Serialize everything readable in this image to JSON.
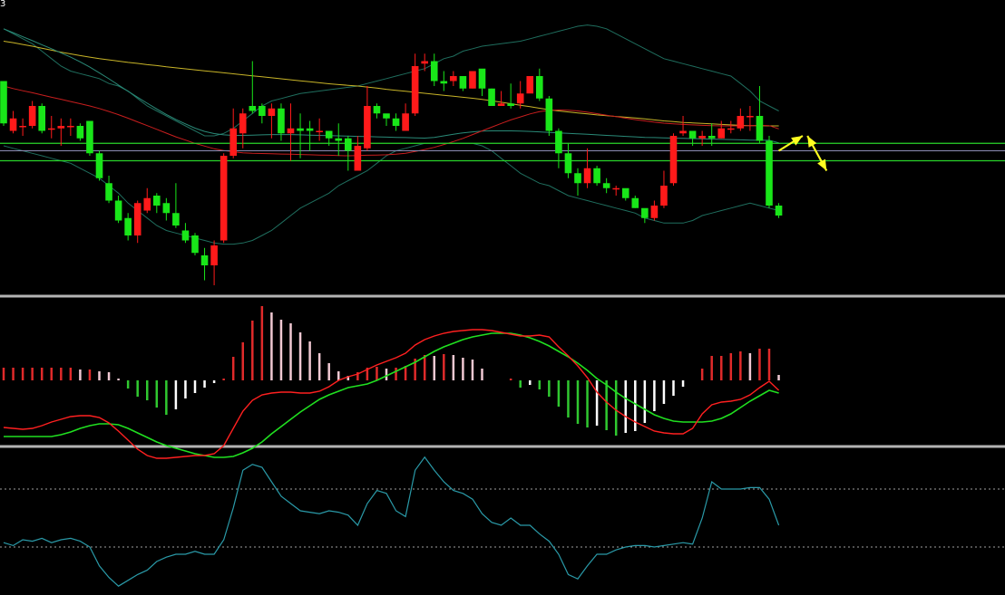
{
  "corner_label": "3",
  "colors": {
    "background": "#000000",
    "up_candle": "#ff1a1a",
    "down_candle": "#19e619",
    "ma_long": "#c8b428",
    "ma_mid": "#c81e1e",
    "ma_teal": "#2a8a78",
    "bollinger": "#1f6e5e",
    "level_line": "#29d42a",
    "price_line": "#8c8cb4",
    "separator": "#b4b4b4",
    "macd_dif": "#ff2020",
    "macd_dea": "#20e020",
    "hist_pos_rising": "#e02a2a",
    "hist_pos_falling": "#f0c8d2",
    "hist_neg_falling": "#30c830",
    "hist_neg_rising": "#ffffff",
    "oscillator": "#2a9aa8",
    "osc_ref": "#a0a0a0",
    "arrow": "#ffff20"
  },
  "chart_data": [
    {
      "type": "candlestick",
      "name": "price",
      "ylim": [
        0,
        100
      ],
      "candles": [
        [
          82,
          65,
          82,
          64
        ],
        [
          62,
          67,
          70,
          61
        ],
        [
          64,
          64,
          67,
          60
        ],
        [
          64,
          72,
          74,
          63
        ],
        [
          72,
          62,
          73,
          61
        ],
        [
          63,
          63,
          68,
          59
        ],
        [
          63,
          64,
          67,
          56
        ],
        [
          64,
          64,
          67,
          60
        ],
        [
          64,
          59,
          65,
          58
        ],
        [
          66,
          53,
          66,
          52
        ],
        [
          53,
          43,
          54,
          42
        ],
        [
          41,
          34,
          44,
          33
        ],
        [
          34,
          26,
          36,
          25
        ],
        [
          27,
          20,
          29,
          18
        ],
        [
          20,
          33,
          34,
          17
        ],
        [
          30,
          35,
          39,
          29
        ],
        [
          36,
          32,
          37,
          29
        ],
        [
          33,
          29,
          35,
          26
        ],
        [
          29,
          24,
          41,
          23
        ],
        [
          22,
          18,
          25,
          17
        ],
        [
          20,
          13,
          21,
          12
        ],
        [
          12,
          8,
          15,
          2
        ],
        [
          8,
          16,
          18,
          0
        ],
        [
          18,
          52,
          53,
          17
        ],
        [
          52,
          63,
          71,
          51
        ],
        [
          61,
          69,
          71,
          55
        ],
        [
          72,
          70,
          90,
          69
        ],
        [
          72,
          68,
          73,
          65
        ],
        [
          68,
          71,
          73,
          59
        ],
        [
          71,
          61,
          73,
          58
        ],
        [
          61,
          63,
          73,
          50
        ],
        [
          63,
          62,
          69,
          51
        ],
        [
          63,
          62,
          66,
          54
        ],
        [
          62,
          62,
          67,
          58
        ],
        [
          62,
          59,
          61,
          56
        ],
        [
          59,
          58,
          65,
          52
        ],
        [
          59,
          54,
          60,
          46
        ],
        [
          46,
          56,
          60,
          46
        ],
        [
          55,
          72,
          80,
          54
        ],
        [
          72,
          69,
          73,
          67
        ],
        [
          69,
          67,
          68,
          64
        ],
        [
          67,
          64,
          69,
          62
        ],
        [
          62,
          69,
          73,
          62
        ],
        [
          69,
          88,
          93,
          68
        ],
        [
          89,
          90,
          93,
          86
        ],
        [
          90,
          82,
          93,
          80
        ],
        [
          82,
          81,
          86,
          78
        ],
        [
          82,
          84,
          86,
          80
        ],
        [
          84,
          79,
          84,
          78
        ],
        [
          79,
          86,
          86,
          79
        ],
        [
          87,
          79,
          85,
          76
        ],
        [
          79,
          72,
          79,
          72
        ],
        [
          72,
          73,
          78,
          72
        ],
        [
          73,
          72,
          81,
          71
        ],
        [
          73,
          77,
          82,
          71
        ],
        [
          77,
          84,
          84,
          79
        ],
        [
          84,
          75,
          87,
          74
        ],
        [
          75,
          62,
          76,
          60
        ],
        [
          62,
          53,
          63,
          47
        ],
        [
          53,
          45,
          57,
          43
        ],
        [
          45,
          41,
          47,
          36
        ],
        [
          41,
          47,
          55,
          39
        ],
        [
          47,
          41,
          48,
          40
        ],
        [
          41,
          39,
          43,
          37
        ],
        [
          39,
          39,
          40,
          36
        ],
        [
          39,
          35,
          38,
          34
        ],
        [
          35,
          31,
          36,
          31
        ],
        [
          31,
          27,
          30,
          25
        ],
        [
          27,
          32,
          34,
          26
        ],
        [
          32,
          40,
          46,
          31
        ],
        [
          41,
          60,
          61,
          40
        ],
        [
          61,
          62,
          68,
          60
        ],
        [
          62,
          59,
          62,
          56
        ],
        [
          59,
          60,
          62,
          56
        ],
        [
          60,
          59,
          65,
          56
        ],
        [
          59,
          63,
          66,
          59
        ],
        [
          63,
          63,
          66,
          61
        ],
        [
          63,
          68,
          71,
          62
        ],
        [
          68,
          68,
          72,
          62
        ],
        [
          68,
          58,
          80,
          57
        ],
        [
          58,
          32,
          60,
          31
        ],
        [
          32,
          28,
          33,
          27
        ]
      ],
      "ma_long": [
        98,
        97.4,
        96.7,
        96,
        95.2,
        94.4,
        93.6,
        92.9,
        92.2,
        91.6,
        91,
        90.5,
        90,
        89.5,
        89.1,
        88.6,
        88.2,
        87.7,
        87.3,
        86.9,
        86.5,
        86.1,
        85.7,
        85.3,
        84.9,
        84.5,
        84.1,
        83.7,
        83.3,
        82.9,
        82.5,
        82.1,
        81.7,
        81.3,
        80.9,
        80.6,
        80.3,
        80,
        79.6,
        79.2,
        78.7,
        78.3,
        77.9,
        77.5,
        77.1,
        76.7,
        76.3,
        75.9,
        75.5,
        75.1,
        74.6,
        74.1,
        73.5,
        72.9,
        72.3,
        71.7,
        71.1,
        70.5,
        70,
        69.6,
        69.2,
        68.8,
        68.4,
        68.1,
        67.8,
        67.5,
        67.2,
        66.8,
        66.4,
        66,
        65.7,
        65.4,
        65.2,
        65,
        64.8,
        64.6,
        64.4,
        64.2,
        64.1,
        64.1,
        64,
        64
      ],
      "ma_mid": [
        80,
        79,
        78.1,
        77.3,
        76.4,
        75.5,
        74.7,
        73.8,
        72.9,
        72,
        71,
        69.8,
        68.5,
        67.1,
        65.6,
        64.1,
        62.6,
        61.1,
        59.6,
        58.3,
        57,
        55.9,
        54.8,
        54.1,
        53.6,
        53.2,
        53,
        52.9,
        52.8,
        52.7,
        52.6,
        52.5,
        52.4,
        52.3,
        52.2,
        52.1,
        52,
        52.1,
        52.2,
        52.3,
        52.4,
        52.6,
        53,
        53.7,
        54.5,
        55.4,
        56.5,
        57.7,
        59,
        60.5,
        62,
        63.5,
        65,
        66.4,
        67.6,
        68.8,
        69.7,
        70.2,
        70.4,
        70.3,
        70,
        69.5,
        68.9,
        68.3,
        67.7,
        67.1,
        66.5,
        66,
        65.5,
        65.1,
        64.8,
        64.6,
        64.4,
        64.2,
        64.1,
        64,
        64,
        64,
        64.1,
        64.2,
        64.1,
        62.8
      ],
      "ma_teal": [
        103,
        101.4,
        99.8,
        98.2,
        96.6,
        95,
        93.3,
        91.6,
        89.7,
        87.6,
        85.3,
        82.9,
        80.4,
        77.9,
        75.5,
        73.1,
        70.8,
        68.6,
        66.6,
        64.8,
        63.1,
        61.8,
        60.9,
        60.4,
        60.2,
        60.2,
        60.3,
        60.4,
        60.5,
        60.5,
        60.5,
        60.4,
        60.3,
        60.2,
        60.1,
        60,
        59.9,
        59.8,
        59.7,
        59.6,
        59.5,
        59.4,
        59.3,
        59.2,
        59.1,
        59.4,
        60,
        60.6,
        61.2,
        61.6,
        61.9,
        62,
        62,
        62,
        61.9,
        61.8,
        61.6,
        61.4,
        61.2,
        61,
        60.8,
        60.6,
        60.4,
        60.2,
        60,
        59.8,
        59.6,
        59.4,
        59.3,
        59.2,
        59.1,
        59,
        58.9,
        58.8,
        58.7,
        58.6,
        58.5,
        58.4,
        58.3,
        58.2,
        58.2,
        57.2
      ],
      "boll_upper": [
        103,
        101,
        99,
        97,
        94,
        91,
        88,
        86,
        85,
        84,
        83,
        81,
        80,
        78,
        75,
        72,
        70,
        68,
        66,
        64,
        62,
        60,
        60,
        61,
        63,
        66,
        69,
        72,
        74,
        75,
        76,
        77,
        77.5,
        78,
        78.5,
        79,
        79.5,
        80,
        81,
        82,
        83,
        84,
        85,
        86,
        87,
        89,
        91,
        92,
        94,
        95,
        96,
        96.5,
        97,
        97.5,
        98,
        99,
        100,
        101,
        102,
        103,
        104,
        104.5,
        104,
        103,
        101,
        99,
        97,
        95,
        93,
        91,
        90,
        89,
        88,
        87,
        86,
        85,
        84,
        81,
        78,
        74,
        72,
        70
      ],
      "boll_lower": [
        56,
        55,
        54,
        53,
        52,
        51,
        50,
        49,
        47,
        45,
        43,
        40,
        37,
        33,
        30,
        27,
        24,
        22,
        21,
        20,
        19,
        18,
        17,
        16.5,
        16.5,
        17,
        18,
        20,
        22,
        25,
        28,
        31,
        33,
        35,
        37,
        40,
        42,
        44,
        46,
        49,
        52,
        54,
        55,
        56,
        57,
        57,
        57,
        57,
        57,
        57,
        56,
        54,
        51,
        48,
        45,
        43,
        41,
        40,
        38,
        36,
        35,
        34,
        33,
        32,
        31,
        30,
        29,
        27,
        26,
        25,
        25,
        25,
        26,
        28,
        29,
        30,
        31,
        32,
        33,
        32,
        31,
        30
      ],
      "levels": [
        {
          "value": 57
        },
        {
          "value": 50
        }
      ],
      "price_line": 54,
      "arrows": [
        {
          "from": [
            81,
            54
          ],
          "to": [
            83.5,
            60
          ],
          "double_head": false
        },
        {
          "from": [
            84,
            60
          ],
          "to": [
            86,
            46
          ],
          "double_head": true
        }
      ]
    },
    {
      "type": "macd",
      "ylim": [
        -10,
        10
      ],
      "dif": [
        -5.2,
        -5.3,
        -5.4,
        -5.3,
        -5,
        -4.6,
        -4.3,
        -4,
        -3.9,
        -3.9,
        -4.1,
        -4.7,
        -5.6,
        -6.6,
        -7.6,
        -8.3,
        -8.6,
        -8.6,
        -8.5,
        -8.4,
        -8.3,
        -8.3,
        -8.1,
        -7.2,
        -5.3,
        -3.4,
        -2.2,
        -1.6,
        -1.4,
        -1.3,
        -1.3,
        -1.4,
        -1.4,
        -1.2,
        -0.7,
        0,
        0.4,
        0.7,
        1.2,
        1.7,
        2.1,
        2.5,
        3,
        3.9,
        4.5,
        4.9,
        5.2,
        5.4,
        5.5,
        5.6,
        5.6,
        5.5,
        5.3,
        5.1,
        4.9,
        4.9,
        5,
        4.8,
        3.7,
        2.7,
        1.6,
        0.3,
        -1.3,
        -2.4,
        -3.3,
        -4,
        -4.6,
        -5.1,
        -5.6,
        -5.8,
        -5.9,
        -5.9,
        -5.3,
        -3.7,
        -2.7,
        -2.4,
        -2.3,
        -2.1,
        -1.6,
        -0.8,
        -0.1,
        -1.1
      ],
      "dea": [
        -6.2,
        -6.2,
        -6.2,
        -6.2,
        -6.2,
        -6.2,
        -6,
        -5.7,
        -5.3,
        -5,
        -4.8,
        -4.8,
        -4.9,
        -5.3,
        -5.8,
        -6.3,
        -6.8,
        -7.2,
        -7.5,
        -7.8,
        -8.1,
        -8.3,
        -8.5,
        -8.5,
        -8.4,
        -8,
        -7.5,
        -6.8,
        -5.9,
        -5.1,
        -4.3,
        -3.5,
        -2.8,
        -2.1,
        -1.6,
        -1.2,
        -0.8,
        -0.6,
        -0.4,
        0,
        0.5,
        1,
        1.5,
        2,
        2.6,
        3.2,
        3.7,
        4.1,
        4.5,
        4.8,
        5,
        5.2,
        5.2,
        5.2,
        5,
        4.7,
        4.3,
        3.8,
        3.2,
        2.6,
        1.9,
        1.1,
        0.2,
        -0.5,
        -1.3,
        -2,
        -2.6,
        -3.2,
        -3.8,
        -4.2,
        -4.5,
        -4.6,
        -4.6,
        -4.6,
        -4.5,
        -4.2,
        -3.7,
        -3,
        -2.3,
        -1.7,
        -1.1,
        -1.4
      ],
      "hist": [
        1.4,
        1.4,
        1.4,
        1.4,
        1.4,
        1.4,
        1.4,
        1.4,
        1.2,
        1.2,
        1,
        0.9,
        0.2,
        -0.9,
        -1.8,
        -2.2,
        -3,
        -3.8,
        -3.2,
        -2,
        -1.4,
        -0.8,
        -0.3,
        0.2,
        2.6,
        4.2,
        6.6,
        8.2,
        7.5,
        6.7,
        6.3,
        5.3,
        4.3,
        3,
        1.9,
        1,
        0.5,
        0.9,
        1.4,
        1.5,
        1.3,
        1.4,
        1.6,
        2.4,
        2.8,
        2.7,
        2.9,
        2.8,
        2.5,
        2.3,
        1.3,
        0,
        0,
        0.2,
        -0.8,
        -0.5,
        -1,
        -1.8,
        -2.9,
        -4.1,
        -4.8,
        -5.2,
        -5,
        -5.5,
        -6.1,
        -5.8,
        -5.6,
        -4.7,
        -3.4,
        -2.6,
        -1.7,
        -0.7,
        0,
        1.3,
        2.7,
        2.7,
        3,
        3.2,
        3,
        3.5,
        3.5,
        0.6
      ]
    },
    {
      "type": "line",
      "name": "oscillator",
      "ylim": [
        0,
        100
      ],
      "ref_lines": [
        75,
        35
      ],
      "values": [
        38,
        36,
        40,
        39,
        41,
        38,
        40,
        41,
        39,
        35,
        22,
        14,
        8,
        12,
        16,
        19,
        25,
        28,
        30,
        30,
        32,
        30,
        30,
        40,
        62,
        88,
        92,
        90,
        80,
        70,
        65,
        60,
        59,
        58,
        60,
        59,
        57,
        50,
        65,
        74,
        72,
        60,
        56,
        88,
        97,
        88,
        80,
        74,
        72,
        68,
        58,
        52,
        50,
        55,
        50,
        50,
        44,
        39,
        30,
        16,
        13,
        22,
        30,
        30,
        33,
        35,
        36,
        36,
        35,
        36,
        37,
        38,
        37,
        55,
        80,
        75,
        75,
        75,
        76,
        76,
        68,
        50
      ]
    }
  ]
}
